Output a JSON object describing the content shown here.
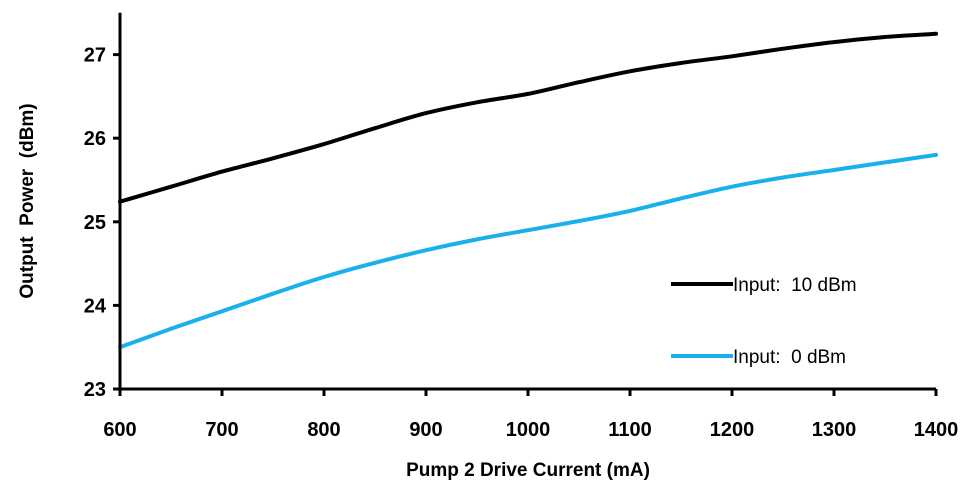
{
  "chart_data": {
    "type": "line",
    "title": "",
    "xlabel": "Pump 2 Drive Current (mA)",
    "ylabel": "Output  Power  (dBm)",
    "xlim": [
      600,
      1400
    ],
    "ylim": [
      23,
      27.5
    ],
    "x_ticks": [
      600,
      700,
      800,
      900,
      1000,
      1100,
      1200,
      1300,
      1400
    ],
    "x_tick_labels": [
      "600",
      "700",
      "800",
      "900",
      "1000",
      "1100",
      "1200",
      "1300",
      "1400"
    ],
    "y_ticks": [
      23,
      24,
      25,
      26,
      27
    ],
    "y_tick_labels": [
      "23",
      "24",
      "25",
      "26",
      "27"
    ],
    "grid": false,
    "legend_position": "lower-right",
    "series": [
      {
        "name": "Input:  10 dBm",
        "color": "#000000",
        "x": [
          600,
          650,
          700,
          750,
          800,
          850,
          900,
          950,
          1000,
          1050,
          1100,
          1150,
          1200,
          1250,
          1300,
          1350,
          1400
        ],
        "y": [
          25.24,
          25.42,
          25.6,
          25.76,
          25.93,
          26.12,
          26.3,
          26.43,
          26.53,
          26.67,
          26.8,
          26.9,
          26.98,
          27.07,
          27.15,
          27.21,
          27.25
        ]
      },
      {
        "name": "Input:  0 dBm",
        "color": "#1ab0ec",
        "x": [
          600,
          650,
          700,
          750,
          800,
          850,
          900,
          950,
          1000,
          1050,
          1100,
          1150,
          1200,
          1250,
          1300,
          1350,
          1400
        ],
        "y": [
          23.5,
          23.72,
          23.93,
          24.14,
          24.34,
          24.51,
          24.66,
          24.79,
          24.9,
          25.01,
          25.13,
          25.28,
          25.42,
          25.53,
          25.62,
          25.71,
          25.8
        ]
      }
    ]
  }
}
